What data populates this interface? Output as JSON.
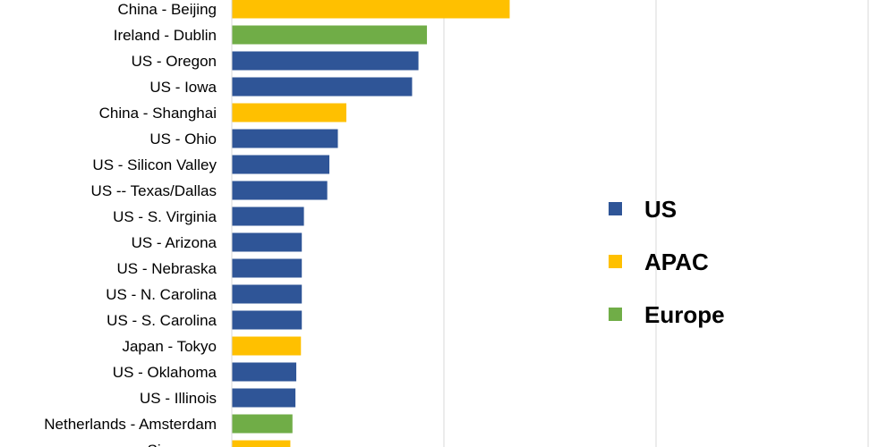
{
  "chart_data": {
    "type": "bar",
    "orientation": "horizontal",
    "categories": [
      "China - Beijing",
      "Ireland - Dublin",
      "US - Oregon",
      "US - Iowa",
      "China - Shanghai",
      "US - Ohio",
      "US - Silicon Valley",
      "US -- Texas/Dallas",
      "US - S. Virginia",
      "US - Arizona",
      "US - Nebraska",
      "US - N. Carolina",
      "US - S. Carolina",
      "Japan - Tokyo",
      "US - Oklahoma",
      "US - Illinois",
      "Netherlands - Amsterdam",
      "Singapore"
    ],
    "values": [
      65.5,
      46,
      44,
      42.5,
      27,
      25,
      23,
      22.5,
      17,
      16.5,
      16.5,
      16.5,
      16.5,
      16.3,
      15.2,
      15,
      14.3,
      13.8
    ],
    "regions": [
      "APAC",
      "Europe",
      "US",
      "US",
      "APAC",
      "US",
      "US",
      "US",
      "US",
      "US",
      "US",
      "US",
      "US",
      "APAC",
      "US",
      "US",
      "Europe",
      "APAC"
    ],
    "xlim": [
      0,
      150
    ],
    "gridlines_x": [
      50,
      100,
      150
    ],
    "grid": "vertical",
    "legend": {
      "placement": "right",
      "entries": [
        {
          "name": "US",
          "color": "#2F5597"
        },
        {
          "name": "APAC",
          "color": "#FFC000"
        },
        {
          "name": "Europe",
          "color": "#70AD47"
        }
      ]
    },
    "colors": {
      "US": "#2F5597",
      "APAC": "#FFC000",
      "Europe": "#70AD47"
    }
  }
}
